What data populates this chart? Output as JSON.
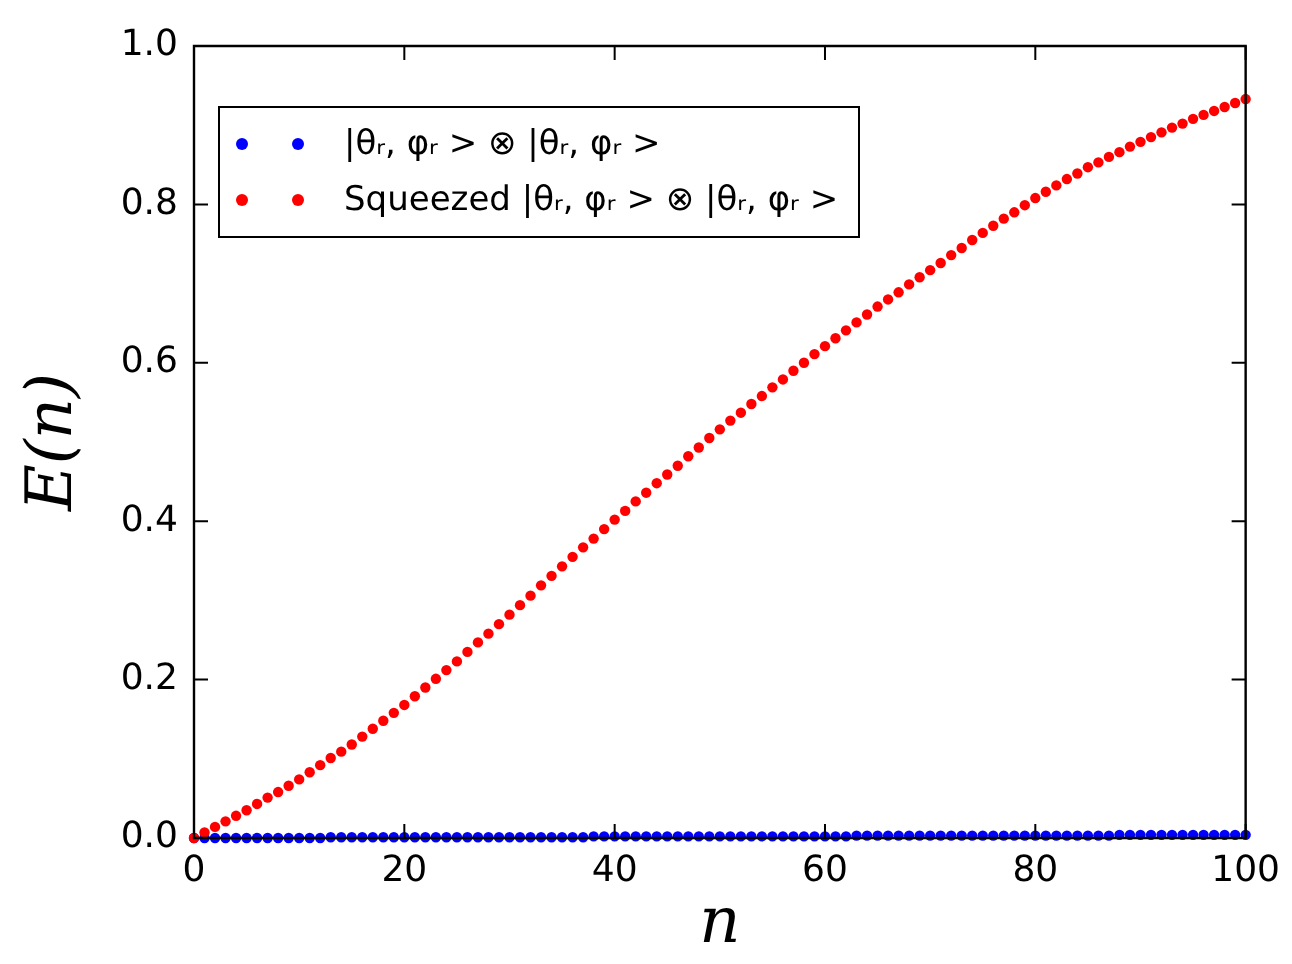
{
  "chart_data": {
    "type": "scatter",
    "xlabel": "n",
    "ylabel": "E(n)",
    "xlim": [
      0,
      100
    ],
    "xticks": [
      0,
      20,
      40,
      60,
      80,
      100
    ],
    "ylim": [
      0,
      1
    ],
    "yticks": [
      {
        "value": 0,
        "label": "0.0"
      },
      {
        "value": 0.2,
        "label": "0.2"
      },
      {
        "value": 0.4,
        "label": "0.4"
      },
      {
        "value": 0.6,
        "label": "0.6"
      },
      {
        "value": 0.8,
        "label": "0.8"
      },
      {
        "value": 1,
        "label": "1.0"
      }
    ],
    "x": [
      0,
      1,
      2,
      3,
      4,
      5,
      6,
      7,
      8,
      9,
      10,
      11,
      12,
      13,
      14,
      15,
      16,
      17,
      18,
      19,
      20,
      21,
      22,
      23,
      24,
      25,
      26,
      27,
      28,
      29,
      30,
      31,
      32,
      33,
      34,
      35,
      36,
      37,
      38,
      39,
      40,
      41,
      42,
      43,
      44,
      45,
      46,
      47,
      48,
      49,
      50,
      51,
      52,
      53,
      54,
      55,
      56,
      57,
      58,
      59,
      60,
      61,
      62,
      63,
      64,
      65,
      66,
      67,
      68,
      69,
      70,
      71,
      72,
      73,
      74,
      75,
      76,
      77,
      78,
      79,
      80,
      81,
      82,
      83,
      84,
      85,
      86,
      87,
      88,
      89,
      90,
      91,
      92,
      93,
      94,
      95,
      96,
      97,
      98,
      99,
      100
    ],
    "series": [
      {
        "name": "|θᵣ, φᵣ > ⊗ |θᵣ, φᵣ >",
        "color": "#0000ff",
        "values": [
          0,
          0,
          0,
          0,
          0,
          0,
          0,
          0,
          0,
          0,
          0,
          0,
          0,
          0.001,
          0.001,
          0.001,
          0.001,
          0.001,
          0.001,
          0.001,
          0.001,
          0.001,
          0.001,
          0.001,
          0.001,
          0.001,
          0.001,
          0.001,
          0.001,
          0.001,
          0.001,
          0.001,
          0.001,
          0.001,
          0.001,
          0.001,
          0.001,
          0.001,
          0.002,
          0.002,
          0.002,
          0.002,
          0.002,
          0.002,
          0.002,
          0.002,
          0.002,
          0.002,
          0.002,
          0.002,
          0.002,
          0.002,
          0.002,
          0.002,
          0.002,
          0.002,
          0.002,
          0.002,
          0.002,
          0.002,
          0.002,
          0.002,
          0.002,
          0.003,
          0.003,
          0.003,
          0.003,
          0.003,
          0.003,
          0.003,
          0.003,
          0.003,
          0.003,
          0.003,
          0.003,
          0.003,
          0.003,
          0.003,
          0.003,
          0.003,
          0.003,
          0.003,
          0.003,
          0.003,
          0.003,
          0.003,
          0.003,
          0.003,
          0.004,
          0.004,
          0.004,
          0.004,
          0.004,
          0.004,
          0.004,
          0.004,
          0.004,
          0.004,
          0.004,
          0.004,
          0.004
        ]
      },
      {
        "name": "Squeezed |θᵣ, φᵣ > ⊗ |θᵣ, φᵣ >",
        "color": "#ff0000",
        "values": [
          0,
          0.007,
          0.014,
          0.021,
          0.028,
          0.035,
          0.043,
          0.051,
          0.058,
          0.066,
          0.074,
          0.083,
          0.092,
          0.101,
          0.109,
          0.118,
          0.128,
          0.138,
          0.148,
          0.158,
          0.168,
          0.179,
          0.19,
          0.201,
          0.212,
          0.223,
          0.235,
          0.247,
          0.258,
          0.27,
          0.282,
          0.294,
          0.306,
          0.319,
          0.331,
          0.343,
          0.355,
          0.367,
          0.378,
          0.39,
          0.402,
          0.413,
          0.425,
          0.436,
          0.448,
          0.459,
          0.47,
          0.482,
          0.493,
          0.505,
          0.516,
          0.527,
          0.537,
          0.548,
          0.558,
          0.569,
          0.579,
          0.59,
          0.6,
          0.611,
          0.621,
          0.631,
          0.641,
          0.651,
          0.661,
          0.671,
          0.68,
          0.689,
          0.699,
          0.708,
          0.717,
          0.726,
          0.736,
          0.745,
          0.755,
          0.764,
          0.773,
          0.782,
          0.79,
          0.799,
          0.808,
          0.816,
          0.824,
          0.832,
          0.839,
          0.847,
          0.853,
          0.86,
          0.866,
          0.873,
          0.879,
          0.885,
          0.891,
          0.897,
          0.902,
          0.908,
          0.913,
          0.918,
          0.923,
          0.928,
          0.933
        ]
      }
    ],
    "marker": "circle",
    "grid": false,
    "legend": "top left"
  }
}
